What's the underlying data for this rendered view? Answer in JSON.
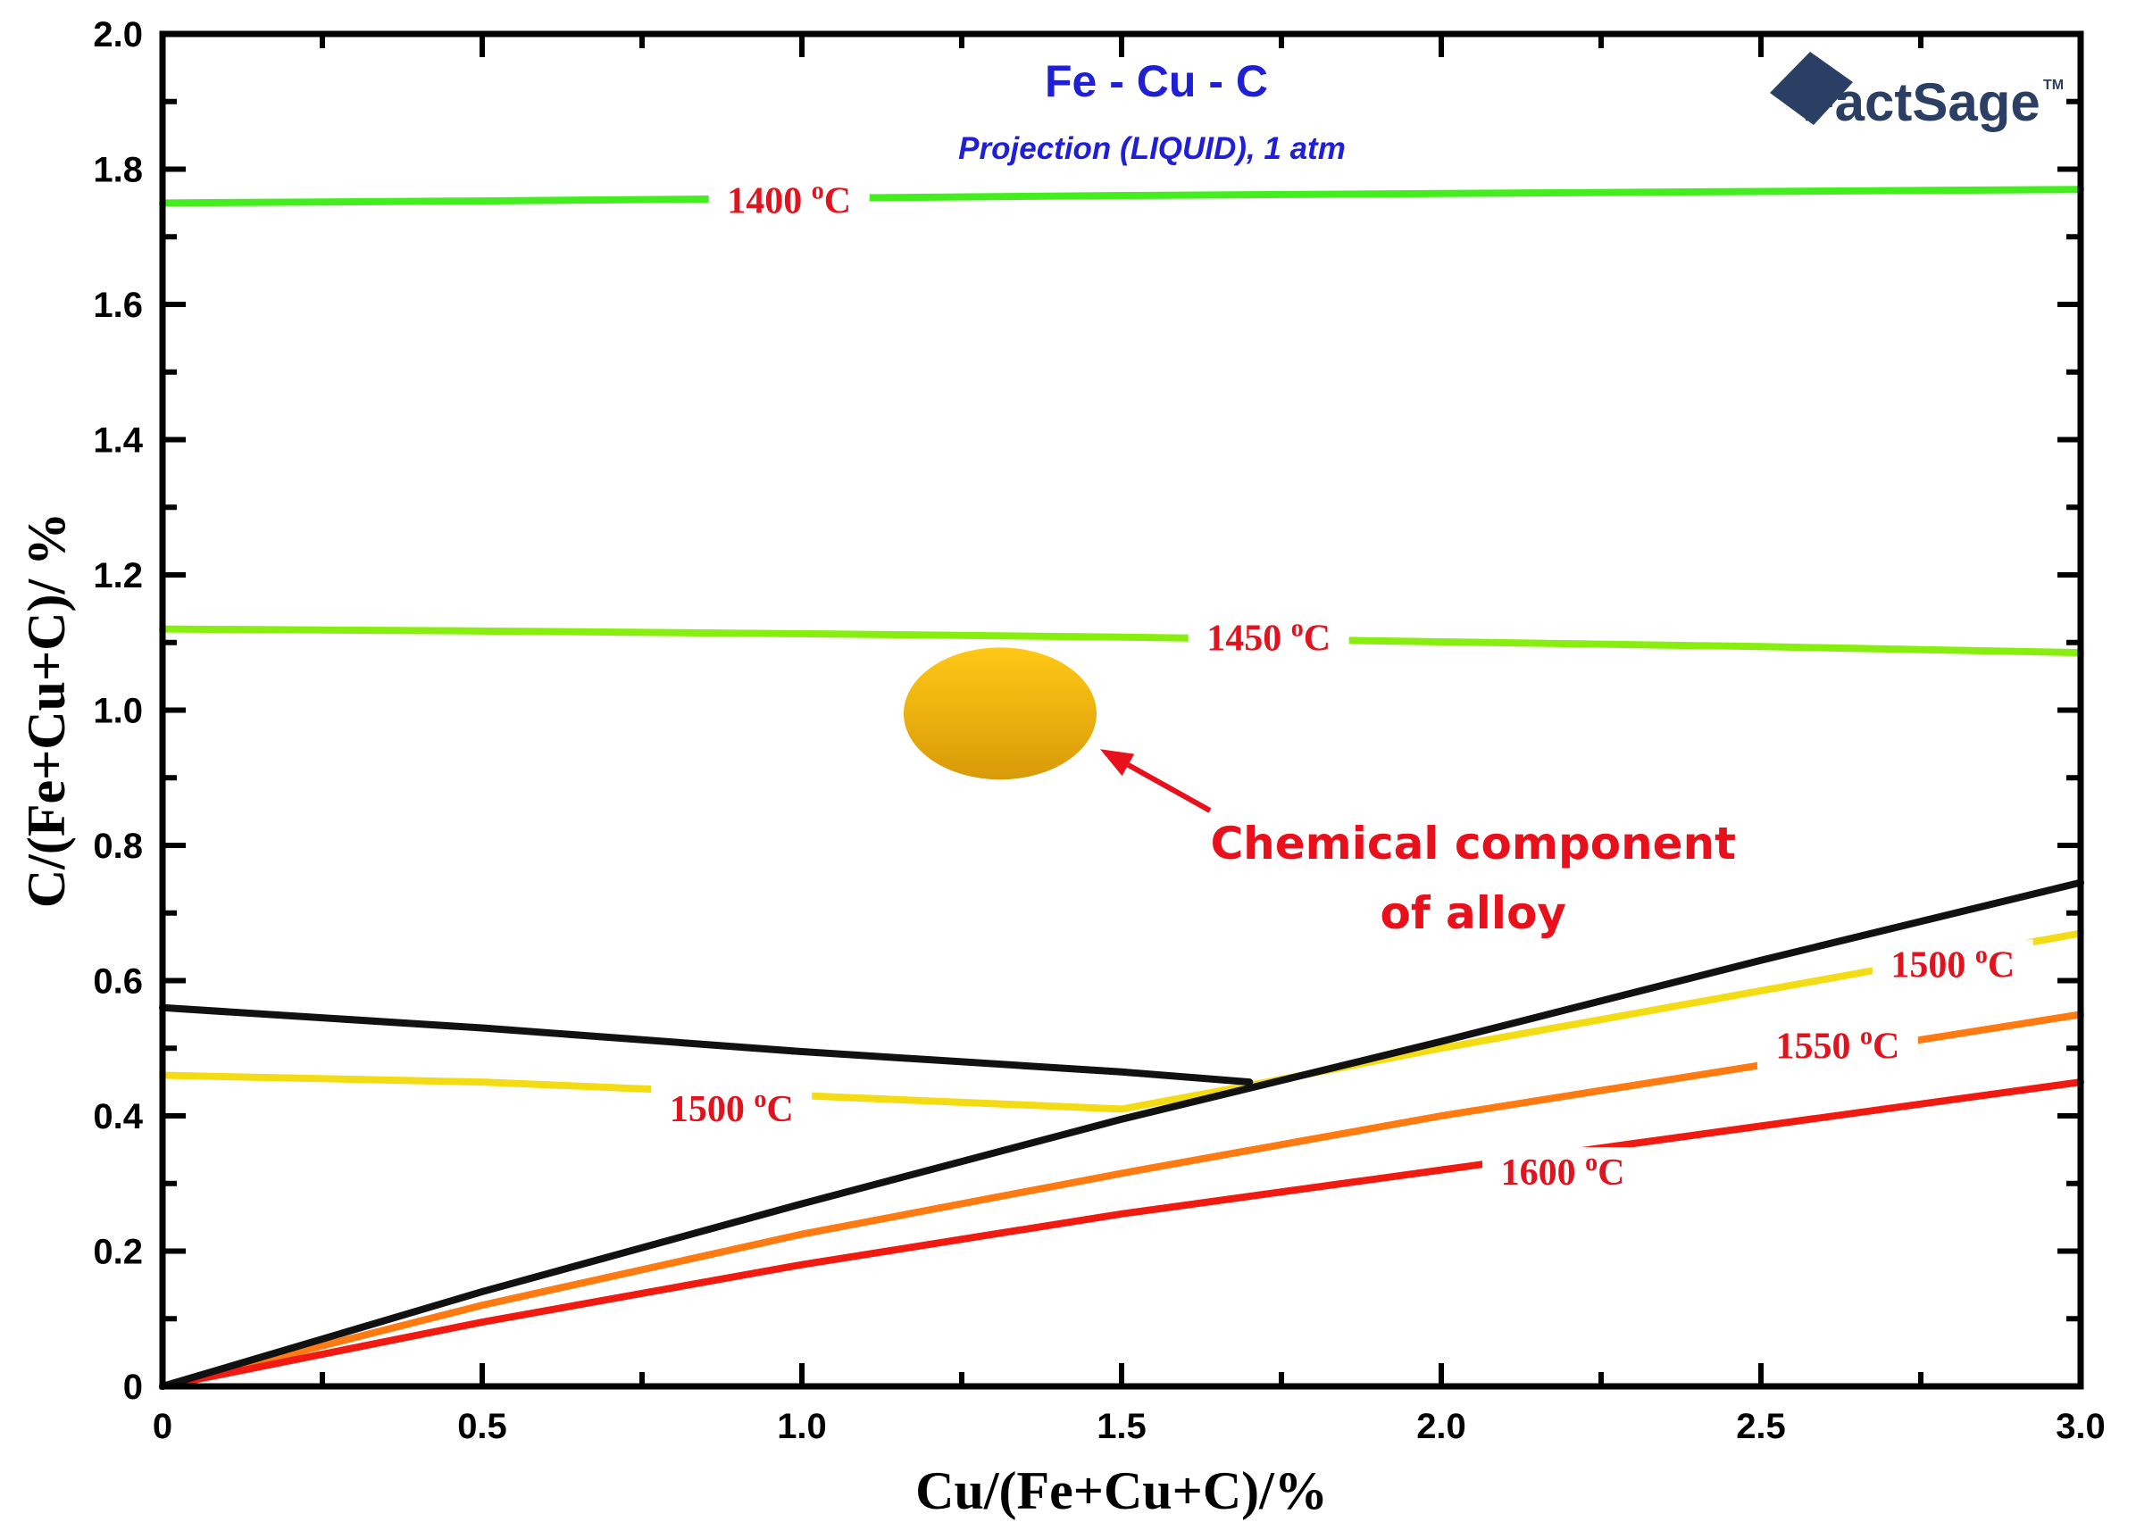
{
  "chart_data": {
    "type": "line",
    "title": "Fe - Cu - C",
    "subtitle": "Projection (LIQUID),  1 atm",
    "xlabel": "Cu/(Fe+Cu+C)/%",
    "ylabel": "C/(Fe+Cu+C)/ %",
    "xlim": [
      0,
      3.0
    ],
    "ylim": [
      0,
      2.0
    ],
    "x_ticks": [
      "0",
      "0.5",
      "1.0",
      "1.5",
      "2.0",
      "2.5",
      "3.0"
    ],
    "y_ticks": [
      "0",
      "0.2",
      "0.4",
      "0.6",
      "0.8",
      "1.0",
      "1.2",
      "1.4",
      "1.6",
      "1.8",
      "2.0"
    ],
    "series": [
      {
        "name": "1400 oC",
        "color": "#44ee1e",
        "x": [
          0,
          0.5,
          1.0,
          1.5,
          2.0,
          2.5,
          3.0
        ],
        "y": [
          1.75,
          1.753,
          1.757,
          1.761,
          1.764,
          1.767,
          1.77
        ]
      },
      {
        "name": "1450 oC",
        "color": "#88ee10",
        "x": [
          0,
          0.5,
          1.0,
          1.5,
          2.0,
          2.5,
          3.0
        ],
        "y": [
          1.12,
          1.117,
          1.113,
          1.108,
          1.101,
          1.094,
          1.085
        ]
      },
      {
        "name": "1500 oC",
        "color": "#f4dc14",
        "x": [
          0,
          0.5,
          1.0,
          1.5,
          1.7
        ],
        "y": [
          0.46,
          0.45,
          0.43,
          0.41,
          0.445
        ]
      },
      {
        "name": "1500 oC",
        "color": "#f4dc14",
        "x": [
          1.7,
          2.0,
          2.5,
          3.0
        ],
        "y": [
          0.445,
          0.5,
          0.585,
          0.67
        ]
      },
      {
        "name": "1550 oC",
        "color": "#ff7a10",
        "x": [
          0,
          0.5,
          1.0,
          1.5,
          2.0,
          2.5,
          3.0
        ],
        "y": [
          0,
          0.12,
          0.225,
          0.315,
          0.4,
          0.475,
          0.55
        ]
      },
      {
        "name": "1600 oC",
        "color": "#f01a10",
        "x": [
          0,
          0.5,
          1.0,
          1.5,
          2.0,
          2.5,
          3.0
        ],
        "y": [
          0,
          0.095,
          0.18,
          0.255,
          0.32,
          0.385,
          0.45
        ]
      },
      {
        "name": "boundary",
        "color": "#111111",
        "x": [
          0,
          0.5,
          1.0,
          1.5,
          1.7
        ],
        "y": [
          0.56,
          0.53,
          0.495,
          0.465,
          0.45
        ]
      },
      {
        "name": "boundary",
        "color": "#111111",
        "x": [
          0,
          0.5,
          1.0,
          1.5,
          2.0,
          2.5,
          3.0
        ],
        "y": [
          0,
          0.14,
          0.27,
          0.395,
          0.51,
          0.63,
          0.745
        ]
      }
    ],
    "labels": [
      {
        "text": "1400 oC",
        "x": 0.98,
        "y": 1.755
      },
      {
        "text": "1450 oC",
        "x": 1.73,
        "y": 1.108
      },
      {
        "text": "1500 oC",
        "x": 0.89,
        "y": 0.412
      },
      {
        "text": "1500 oC",
        "x": 2.8,
        "y": 0.625
      },
      {
        "text": "1550 oC",
        "x": 2.62,
        "y": 0.505
      },
      {
        "text": "1600 oC",
        "x": 2.19,
        "y": 0.318
      }
    ],
    "marker": {
      "x": 1.31,
      "y": 0.995,
      "label": "alloy composition"
    },
    "annotation": {
      "line1": "Chemical component",
      "line2": "of alloy",
      "x": 2.05,
      "y": 0.78
    }
  },
  "logo": {
    "text": "FactSage",
    "tm": "TM"
  }
}
